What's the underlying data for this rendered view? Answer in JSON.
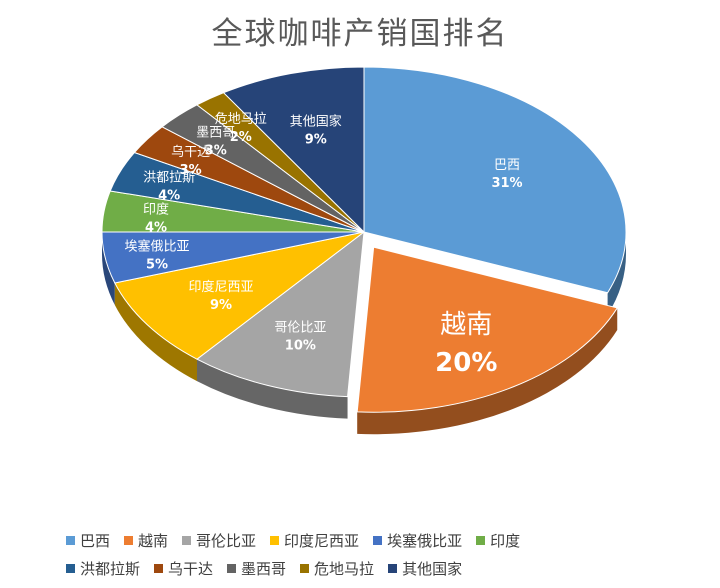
{
  "chart_data": {
    "type": "pie",
    "title": "全球咖啡产销国排名",
    "legend_position": "bottom",
    "slices": [
      {
        "label": "巴西",
        "value": 31,
        "pct_label": "31%",
        "color": "#5b9bd5"
      },
      {
        "label": "越南",
        "value": 20,
        "pct_label": "20%",
        "color": "#ed7d31"
      },
      {
        "label": "哥伦比亚",
        "value": 10,
        "pct_label": "10%",
        "color": "#a5a5a5"
      },
      {
        "label": "印度尼西亚",
        "value": 9,
        "pct_label": "9%",
        "color": "#ffc000"
      },
      {
        "label": "埃塞俄比亚",
        "value": 5,
        "pct_label": "5%",
        "color": "#4472c4"
      },
      {
        "label": "印度",
        "value": 4,
        "pct_label": "4%",
        "color": "#70ad47"
      },
      {
        "label": "洪都拉斯",
        "value": 4,
        "pct_label": "4%",
        "color": "#255e91"
      },
      {
        "label": "乌干达",
        "value": 3,
        "pct_label": "3%",
        "color": "#9e480e"
      },
      {
        "label": "墨西哥",
        "value": 3,
        "pct_label": "3%",
        "color": "#636363"
      },
      {
        "label": "危地马拉",
        "value": 2,
        "pct_label": "2%",
        "color": "#997300"
      },
      {
        "label": "其他国家",
        "value": 9,
        "pct_label": "9%",
        "color": "#264478"
      }
    ],
    "exploded_slice": "越南"
  }
}
